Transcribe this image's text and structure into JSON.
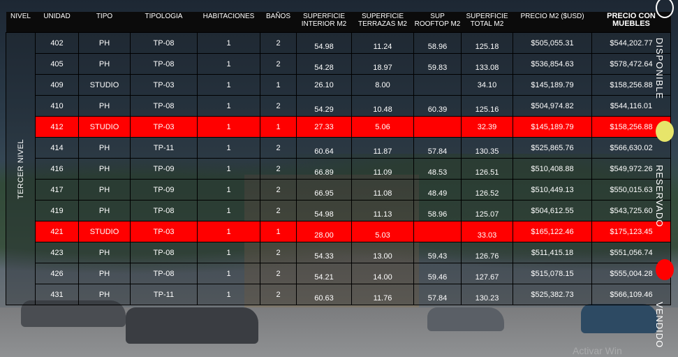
{
  "headers": {
    "nivel": "NIVEL",
    "unidad": "UNIDAD",
    "tipo": "TIPO",
    "tipologia": "TIPOLOGIA",
    "habitaciones": "HABITACIONES",
    "banos": "BAÑOS",
    "sup_interior": "SUPERFICIE INTERIOR M2",
    "sup_terrazas": "SUPERFICIE TERRAZAS M2",
    "sup_rooftop": "SUP ROOFTOP M2",
    "sup_total": "SUPERFICIE TOTAL M2",
    "precio_m2": "PRECIO M2 ($USD)",
    "precio_muebles": "PRECIO CON MUEBLES"
  },
  "nivel_label": "TERCER NIVEL",
  "rows": [
    {
      "unidad": "402",
      "tipo": "PH",
      "tipologia": "TP-08",
      "hab": "1",
      "banos": "2",
      "interior": "54.98",
      "terrazas": "11.24",
      "rooftop": "58.96",
      "total": "125.18",
      "precio_m2": "$505,055.31",
      "precio_muebles": "$544,202.77",
      "status": "disponible"
    },
    {
      "unidad": "405",
      "tipo": "PH",
      "tipologia": "TP-08",
      "hab": "1",
      "banos": "2",
      "interior": "54.28",
      "terrazas": "18.97",
      "rooftop": "59.83",
      "total": "133.08",
      "precio_m2": "$536,854.63",
      "precio_muebles": "$578,472.64",
      "status": "disponible"
    },
    {
      "unidad": "409",
      "tipo": "STUDIO",
      "tipologia": "TP-03",
      "hab": "1",
      "banos": "1",
      "interior": "26.10",
      "terrazas": "8.00",
      "rooftop": "",
      "total": "34.10",
      "precio_m2": "$145,189.79",
      "precio_muebles": "$158,256.88",
      "status": "disponible"
    },
    {
      "unidad": "410",
      "tipo": "PH",
      "tipologia": "TP-08",
      "hab": "1",
      "banos": "2",
      "interior": "54.29",
      "terrazas": "10.48",
      "rooftop": "60.39",
      "total": "125.16",
      "precio_m2": "$504,974.82",
      "precio_muebles": "$544,116.01",
      "status": "disponible"
    },
    {
      "unidad": "412",
      "tipo": "STUDIO",
      "tipologia": "TP-03",
      "hab": "1",
      "banos": "1",
      "interior": "27.33",
      "terrazas": "5.06",
      "rooftop": "",
      "total": "32.39",
      "precio_m2": "$145,189.79",
      "precio_muebles": "$158,256.88",
      "status": "vendido"
    },
    {
      "unidad": "414",
      "tipo": "PH",
      "tipologia": "TP-11",
      "hab": "1",
      "banos": "2",
      "interior": "60.64",
      "terrazas": "11.87",
      "rooftop": "57.84",
      "total": "130.35",
      "precio_m2": "$525,865.76",
      "precio_muebles": "$566,630.02",
      "status": "disponible"
    },
    {
      "unidad": "416",
      "tipo": "PH",
      "tipologia": "TP-09",
      "hab": "1",
      "banos": "2",
      "interior": "66.89",
      "terrazas": "11.09",
      "rooftop": "48.53",
      "total": "126.51",
      "precio_m2": "$510,408.88",
      "precio_muebles": "$549,972.26",
      "status": "disponible"
    },
    {
      "unidad": "417",
      "tipo": "PH",
      "tipologia": "TP-09",
      "hab": "1",
      "banos": "2",
      "interior": "66.95",
      "terrazas": "11.08",
      "rooftop": "48.49",
      "total": "126.52",
      "precio_m2": "$510,449.13",
      "precio_muebles": "$550,015.63",
      "status": "disponible"
    },
    {
      "unidad": "419",
      "tipo": "PH",
      "tipologia": "TP-08",
      "hab": "1",
      "banos": "2",
      "interior": "54.98",
      "terrazas": "11.13",
      "rooftop": "58.96",
      "total": "125.07",
      "precio_m2": "$504,612.55",
      "precio_muebles": "$543,725.60",
      "status": "disponible"
    },
    {
      "unidad": "421",
      "tipo": "STUDIO",
      "tipologia": "TP-03",
      "hab": "1",
      "banos": "1",
      "interior": "28.00",
      "terrazas": "5.03",
      "rooftop": "",
      "total": "33.03",
      "precio_m2": "$165,122.46",
      "precio_muebles": "$175,123.45",
      "status": "vendido"
    },
    {
      "unidad": "423",
      "tipo": "PH",
      "tipologia": "TP-08",
      "hab": "1",
      "banos": "2",
      "interior": "54.33",
      "terrazas": "13.00",
      "rooftop": "59.43",
      "total": "126.76",
      "precio_m2": "$511,415.18",
      "precio_muebles": "$551,056.74",
      "status": "disponible"
    },
    {
      "unidad": "426",
      "tipo": "PH",
      "tipologia": "TP-08",
      "hab": "1",
      "banos": "2",
      "interior": "54.21",
      "terrazas": "14.00",
      "rooftop": "59.46",
      "total": "127.67",
      "precio_m2": "$515,078.15",
      "precio_muebles": "$555,004.28",
      "status": "disponible"
    },
    {
      "unidad": "431",
      "tipo": "PH",
      "tipologia": "TP-11",
      "hab": "1",
      "banos": "2",
      "interior": "60.63",
      "terrazas": "11.76",
      "rooftop": "57.84",
      "total": "130.23",
      "precio_m2": "$525,382.73",
      "precio_muebles": "$566,109.46",
      "status": "disponible"
    }
  ],
  "legend": {
    "disponible": "DISPONIBLE",
    "reservado": "RESERVADO",
    "vendido": "VENDIDO",
    "colors": {
      "disponible": "#ffffff",
      "reservado": "#e7e56a",
      "vendido": "#ff0000"
    }
  },
  "watermark": "Activar Win"
}
